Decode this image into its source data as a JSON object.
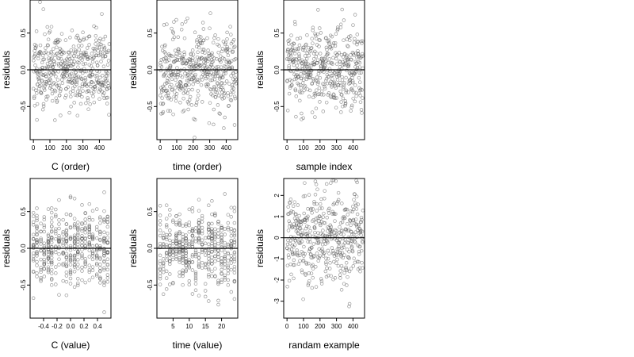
{
  "chart_data": [
    {
      "type": "scatter",
      "xlabel": "C (order)",
      "ylabel": "residuals",
      "xlim": [
        -20,
        470
      ],
      "ylim": [
        -0.95,
        0.95
      ],
      "xticks": [
        0,
        100,
        200,
        300,
        400
      ],
      "yticks": [
        -0.5,
        0.0,
        0.5
      ],
      "ytick_labels": [
        "-0.5",
        "0.0",
        "0.5"
      ],
      "xtick_labels": [
        "0",
        "100",
        "200",
        "300",
        "400"
      ],
      "hline": 0,
      "seed": 11,
      "gen": "uniform_x",
      "n": 460,
      "sd": 0.27
    },
    {
      "type": "scatter",
      "xlabel": "time (order)",
      "ylabel": "residuals",
      "xlim": [
        -20,
        470
      ],
      "ylim": [
        -0.95,
        0.95
      ],
      "xticks": [
        0,
        100,
        200,
        300,
        400
      ],
      "yticks": [
        -0.5,
        0.0,
        0.5
      ],
      "ytick_labels": [
        "-0.5",
        "0.0",
        "0.5"
      ],
      "xtick_labels": [
        "0",
        "100",
        "200",
        "300",
        "400"
      ],
      "hline": 0,
      "seed": 23,
      "gen": "uniform_x",
      "n": 460,
      "sd": 0.27
    },
    {
      "type": "scatter",
      "xlabel": "sample index",
      "ylabel": "residuals",
      "xlim": [
        -20,
        470
      ],
      "ylim": [
        -0.95,
        0.95
      ],
      "xticks": [
        0,
        100,
        200,
        300,
        400
      ],
      "yticks": [
        -0.5,
        0.0,
        0.5
      ],
      "ytick_labels": [
        "-0.5",
        "0.0",
        "0.5"
      ],
      "xtick_labels": [
        "0",
        "100",
        "200",
        "300",
        "400"
      ],
      "hline": 0,
      "seed": 37,
      "gen": "uniform_x",
      "n": 460,
      "sd": 0.27
    },
    {
      "type": "scatter",
      "xlabel": "C (value)",
      "ylabel": "residuals",
      "xlim": [
        -0.6,
        0.6
      ],
      "ylim": [
        -0.95,
        0.95
      ],
      "xticks": [
        -0.4,
        -0.2,
        0.0,
        0.2,
        0.4
      ],
      "yticks": [
        -0.5,
        0.0,
        0.5
      ],
      "ytick_labels": [
        "-0.5",
        "0.0",
        "0.5"
      ],
      "xtick_labels": [
        "-0.4",
        "-0.2",
        "0.0",
        "0.2",
        "0.4"
      ],
      "hline": 0,
      "seed": 41,
      "gen": "discrete_x",
      "levels": [
        -0.55,
        -0.5,
        -0.44,
        -0.39,
        -0.33,
        -0.28,
        -0.22,
        -0.17,
        -0.11,
        -0.06,
        0.0,
        0.06,
        0.11,
        0.17,
        0.22,
        0.28,
        0.33,
        0.39,
        0.44,
        0.5,
        0.55
      ],
      "n": 460,
      "sd": 0.27
    },
    {
      "type": "scatter",
      "xlabel": "time (value)",
      "ylabel": "residuals",
      "xlim": [
        0,
        25
      ],
      "ylim": [
        -0.95,
        0.95
      ],
      "xticks": [
        5,
        10,
        15,
        20
      ],
      "yticks": [
        -0.5,
        0.0,
        0.5
      ],
      "ytick_labels": [
        "-0.5",
        "0.0",
        "0.5"
      ],
      "xtick_labels": [
        "5",
        "10",
        "15",
        "20"
      ],
      "hline": 0,
      "seed": 53,
      "gen": "discrete_x",
      "levels": [
        1,
        2,
        3,
        4,
        5,
        6,
        7,
        8,
        9,
        10,
        11,
        12,
        13,
        14,
        15,
        16,
        17,
        18,
        19,
        20,
        21,
        22,
        23,
        24
      ],
      "n": 460,
      "sd": 0.27
    },
    {
      "type": "scatter",
      "xlabel": "randam example",
      "ylabel": "residuals",
      "xlim": [
        -20,
        470
      ],
      "ylim": [
        -3.8,
        2.8
      ],
      "xticks": [
        0,
        100,
        200,
        300,
        400
      ],
      "yticks": [
        -3,
        -2,
        -1,
        0,
        1,
        2
      ],
      "ytick_labels": [
        "-3",
        "-2",
        "-1",
        "0",
        "1",
        "2"
      ],
      "xtick_labels": [
        "0",
        "100",
        "200",
        "300",
        "400"
      ],
      "hline": 0,
      "seed": 67,
      "gen": "uniform_x",
      "n": 460,
      "sd": 1.0
    }
  ]
}
